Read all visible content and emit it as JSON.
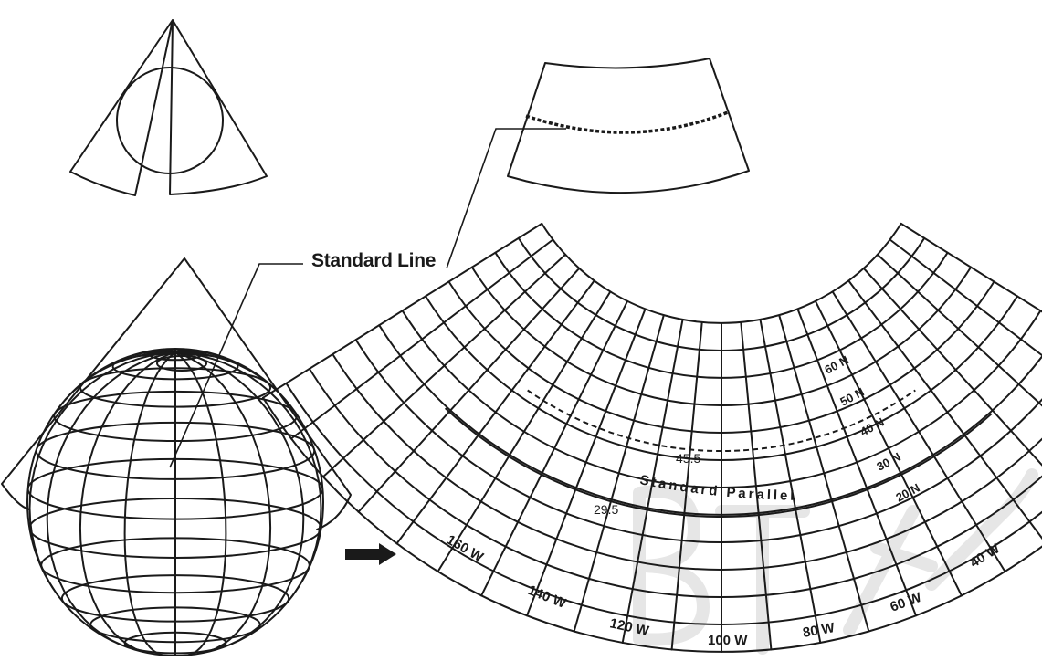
{
  "labels": {
    "standard_line": "Standard Line",
    "standard_parallel": "Standard Parallel",
    "parallel_upper": "45.5",
    "parallel_lower": "29.5"
  },
  "latitudes": [
    "60 N",
    "50 N",
    "40 N",
    "30 N",
    "20 N"
  ],
  "longitudes": [
    "160 W",
    "140 W",
    "120 W",
    "100 W",
    "80 W",
    "60 W",
    "40 W"
  ],
  "colors": {
    "ink": "#1a1a1a",
    "watermark": "#e6e6e6"
  }
}
